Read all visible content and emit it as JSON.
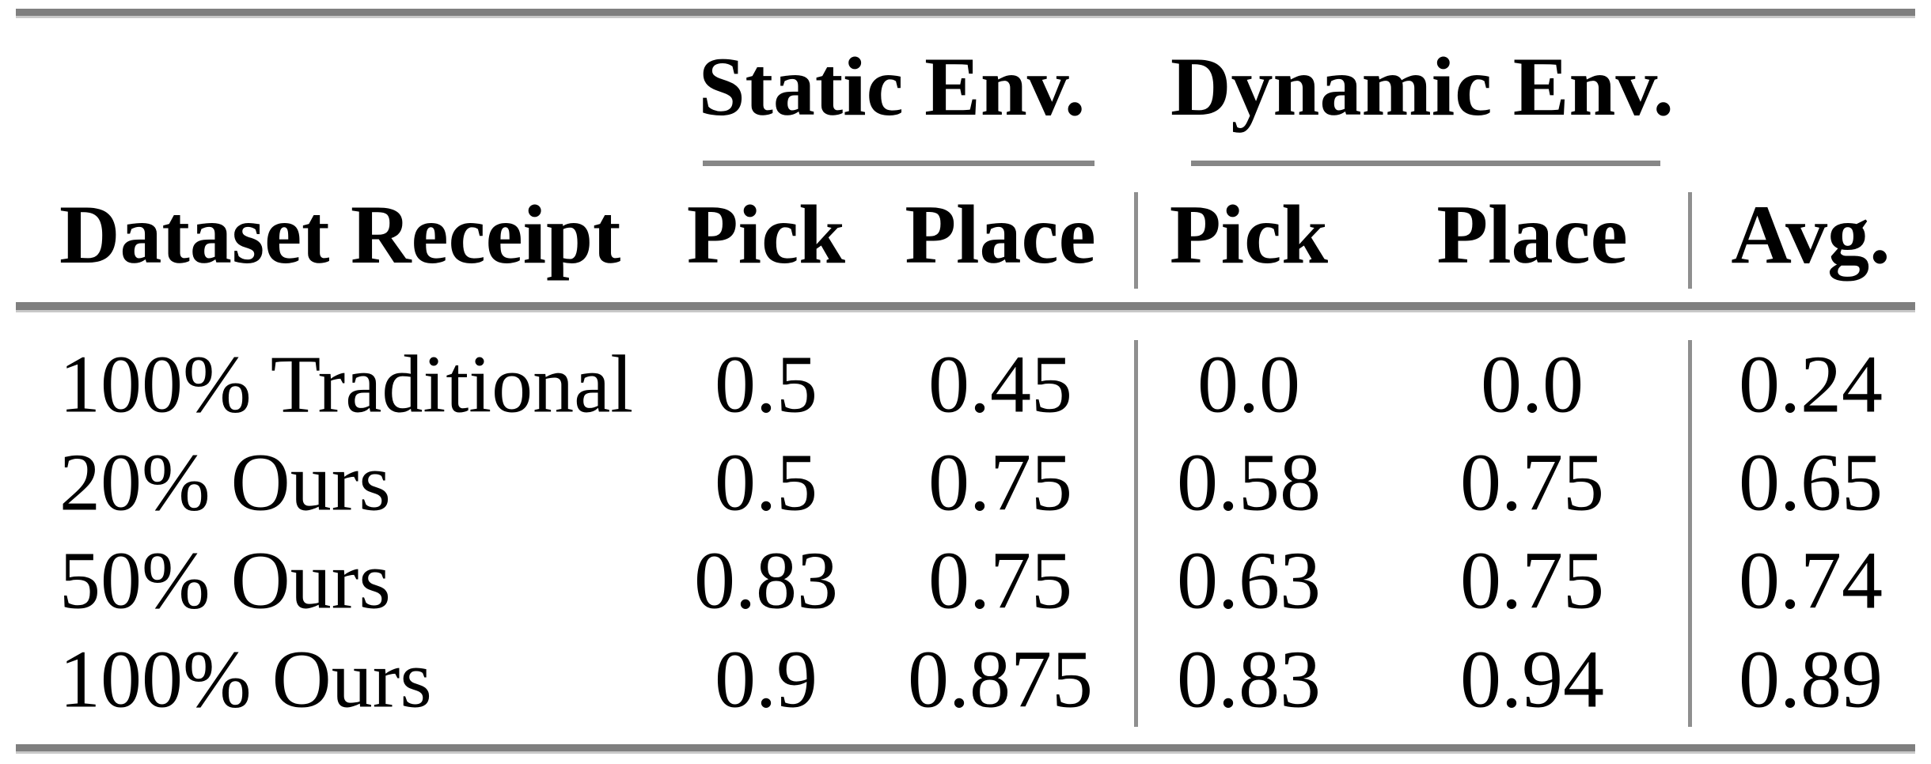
{
  "table": {
    "group_headers": [
      {
        "label": "Static Env."
      },
      {
        "label": "Dynamic Env."
      }
    ],
    "column_headers": {
      "dataset": "Dataset Receipt",
      "static_pick": "Pick",
      "static_place": "Place",
      "dynamic_pick": "Pick",
      "dynamic_place": "Place",
      "avg": "Avg."
    },
    "rows": [
      {
        "dataset": "100% Traditional",
        "static_pick": "0.5",
        "static_place": "0.45",
        "dynamic_pick": "0.0",
        "dynamic_place": "0.0",
        "avg": "0.24"
      },
      {
        "dataset": "20% Ours",
        "static_pick": "0.5",
        "static_place": "0.75",
        "dynamic_pick": "0.58",
        "dynamic_place": "0.75",
        "avg": "0.65"
      },
      {
        "dataset": "50% Ours",
        "static_pick": "0.83",
        "static_place": "0.75",
        "dynamic_pick": "0.63",
        "dynamic_place": "0.75",
        "avg": "0.74"
      },
      {
        "dataset": "100% Ours",
        "static_pick": "0.9",
        "static_place": "0.875",
        "dynamic_pick": "0.83",
        "dynamic_place": "0.94",
        "avg": "0.89"
      }
    ]
  },
  "colors": {
    "rule_gray": "#7f7f7f",
    "rule_edge": "#c9c9c9",
    "text": "#000000",
    "background": "#ffffff"
  }
}
